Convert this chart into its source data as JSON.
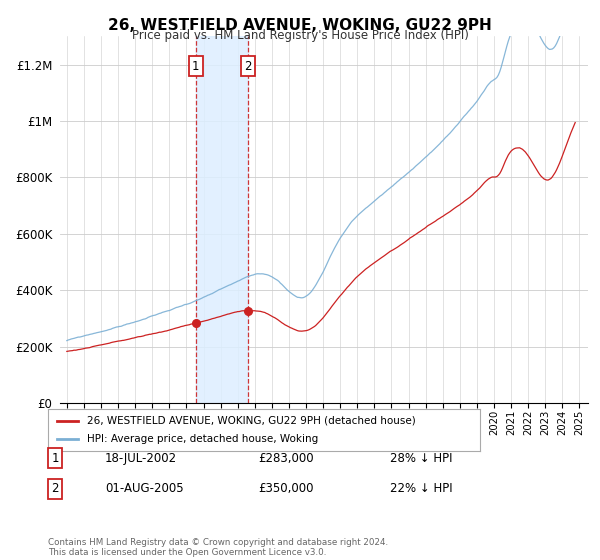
{
  "title": "26, WESTFIELD AVENUE, WOKING, GU22 9PH",
  "subtitle": "Price paid vs. HM Land Registry's House Price Index (HPI)",
  "ylabel_ticks": [
    "£0",
    "£200K",
    "£400K",
    "£600K",
    "£800K",
    "£1M",
    "£1.2M"
  ],
  "ytick_values": [
    0,
    200000,
    400000,
    600000,
    800000,
    1000000,
    1200000
  ],
  "ylim": [
    0,
    1300000
  ],
  "xlim_start": 1994.6,
  "xlim_end": 2025.5,
  "hpi_color": "#7bafd4",
  "price_color": "#cc2222",
  "shaded_color": "#ddeeff",
  "transaction1_date": 2002.54,
  "transaction2_date": 2005.59,
  "transaction1_price": 283000,
  "transaction2_price": 350000,
  "legend1_text": "26, WESTFIELD AVENUE, WOKING, GU22 9PH (detached house)",
  "legend2_text": "HPI: Average price, detached house, Woking",
  "annotation1_label": "1",
  "annotation1_date": "18-JUL-2002",
  "annotation1_price": "£283,000",
  "annotation1_pct": "28% ↓ HPI",
  "annotation2_label": "2",
  "annotation2_date": "01-AUG-2005",
  "annotation2_price": "£350,000",
  "annotation2_pct": "22% ↓ HPI",
  "footnote": "Contains HM Land Registry data © Crown copyright and database right 2024.\nThis data is licensed under the Open Government Licence v3.0.",
  "background_color": "#ffffff"
}
